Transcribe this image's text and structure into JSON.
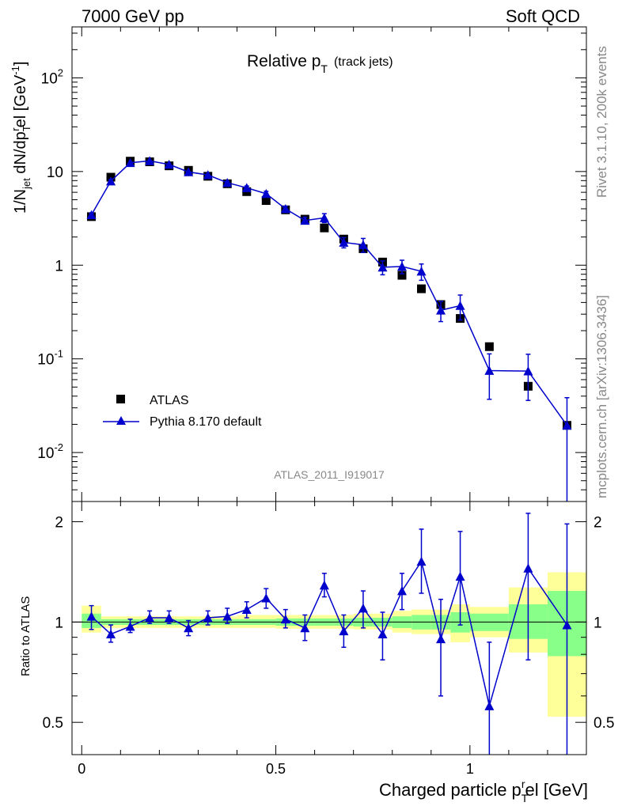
{
  "header": {
    "left": "7000 GeV pp",
    "right": "Soft QCD"
  },
  "side_labels": {
    "rivet": "Rivet 3.1.10,  200k events",
    "mcplots": "mcplots.cern.ch [arXiv:1306.3436]"
  },
  "chart_data": {
    "type": "scatter",
    "title_main": "Relative p",
    "title_sub": "T",
    "title_suffix": "(track jets)",
    "analysis_id": "ATLAS_2011_I919017",
    "ylabel": "1/N_jet dN/dp_T^rel [GeV^-1]",
    "ylabel_parts": {
      "a": "1/N",
      "a_sub": "jet",
      "b": " dN/dp",
      "b_sub": "T",
      "b_sup": "r",
      "c": "el [GeV",
      "c_sup": "-1",
      "d": "]"
    },
    "ratio_ylabel": "Ratio to ATLAS",
    "xlabel": "Charged particle p_T^rel [GeV]",
    "xlabel_parts": {
      "a": "Charged particle p",
      "sub": "T",
      "sup": "r",
      "b": "el [GeV]"
    },
    "xlim": [
      -0.025,
      1.3
    ],
    "ylim": [
      0.003,
      350
    ],
    "yscale": "log",
    "ratio_ylim": [
      0.4,
      2.3
    ],
    "x_ticks": [
      0,
      0.5,
      1
    ],
    "x_tick_labels": [
      "0",
      "0.5",
      "1"
    ],
    "y_tick_labels": [
      {
        "value": 0.01,
        "base": "10",
        "exp": "-2"
      },
      {
        "value": 0.1,
        "base": "10",
        "exp": "-1"
      },
      {
        "value": 1,
        "base": "1",
        "exp": ""
      },
      {
        "value": 10,
        "base": "10",
        "exp": ""
      },
      {
        "value": 100,
        "base": "10",
        "exp": "2"
      }
    ],
    "ratio_ticks": [
      0.5,
      1,
      2
    ],
    "ratio_tick_labels": [
      "0.5",
      "1",
      "2"
    ],
    "legend": [
      {
        "name": "ATLAS",
        "marker": "square",
        "color": "#000000"
      },
      {
        "name": "Pythia 8.170 default",
        "marker": "triangle",
        "color": "#0000cc"
      }
    ],
    "series": [
      {
        "name": "ATLAS",
        "x": [
          0.025,
          0.075,
          0.125,
          0.175,
          0.225,
          0.275,
          0.325,
          0.375,
          0.425,
          0.475,
          0.525,
          0.575,
          0.625,
          0.675,
          0.725,
          0.775,
          0.825,
          0.875,
          0.925,
          0.975,
          1.05,
          1.15,
          1.25
        ],
        "y": [
          3.3,
          8.7,
          12.9,
          12.7,
          11.5,
          10.3,
          8.9,
          7.4,
          6.1,
          4.9,
          3.9,
          3.1,
          2.5,
          1.9,
          1.5,
          1.08,
          0.78,
          0.56,
          0.38,
          0.27,
          0.135,
          0.051,
          0.0195
        ]
      },
      {
        "name": "Pythia 8.170 default",
        "x": [
          0.025,
          0.075,
          0.125,
          0.175,
          0.225,
          0.275,
          0.325,
          0.375,
          0.425,
          0.475,
          0.525,
          0.575,
          0.625,
          0.675,
          0.725,
          0.775,
          0.825,
          0.875,
          0.925,
          0.975,
          1.05,
          1.15,
          1.25
        ],
        "y": [
          3.45,
          7.9,
          12.4,
          13.0,
          11.9,
          9.9,
          9.2,
          7.6,
          6.7,
          5.8,
          4.0,
          3.0,
          3.2,
          1.75,
          1.65,
          0.95,
          0.97,
          0.86,
          0.33,
          0.37,
          0.075,
          0.074,
          0.0195
        ],
        "y_err": [
          0.15,
          0.35,
          0.4,
          0.4,
          0.35,
          0.3,
          0.3,
          0.3,
          0.3,
          0.35,
          0.25,
          0.25,
          0.35,
          0.22,
          0.28,
          0.16,
          0.16,
          0.17,
          0.08,
          0.11,
          0.038,
          0.038,
          0.019
        ]
      }
    ],
    "ratio": {
      "x": [
        0.025,
        0.075,
        0.125,
        0.175,
        0.225,
        0.275,
        0.325,
        0.375,
        0.425,
        0.475,
        0.525,
        0.575,
        0.625,
        0.675,
        0.725,
        0.775,
        0.825,
        0.875,
        0.925,
        0.975,
        1.05,
        1.15,
        1.25
      ],
      "y": [
        1.04,
        0.92,
        0.97,
        1.03,
        1.03,
        0.96,
        1.03,
        1.04,
        1.09,
        1.18,
        1.02,
        0.96,
        1.29,
        0.94,
        1.1,
        0.92,
        1.24,
        1.52,
        0.89,
        1.37,
        0.56,
        1.45,
        0.98
      ],
      "y_lo": [
        0.95,
        0.87,
        0.93,
        0.99,
        0.99,
        0.91,
        0.98,
        0.99,
        1.03,
        1.1,
        0.96,
        0.88,
        1.19,
        0.84,
        0.96,
        0.77,
        1.09,
        1.22,
        0.6,
        0.98,
        0.3,
        0.77,
        0.3
      ],
      "y_hi": [
        1.12,
        0.98,
        1.02,
        1.08,
        1.08,
        1.01,
        1.08,
        1.1,
        1.15,
        1.26,
        1.09,
        1.05,
        1.4,
        1.05,
        1.24,
        1.07,
        1.4,
        1.9,
        1.17,
        1.87,
        0.87,
        2.12,
        1.97
      ],
      "bands": [
        {
          "xlo": 0.0,
          "xhi": 0.05,
          "g_lo": 0.96,
          "g_hi": 1.06,
          "y_lo": 0.93,
          "y_hi": 1.12
        },
        {
          "xlo": 0.05,
          "xhi": 0.1,
          "g_lo": 0.98,
          "g_hi": 1.02,
          "y_lo": 0.96,
          "y_hi": 1.04
        },
        {
          "xlo": 0.1,
          "xhi": 0.15,
          "g_lo": 0.98,
          "g_hi": 1.02,
          "y_lo": 0.96,
          "y_hi": 1.04
        },
        {
          "xlo": 0.15,
          "xhi": 0.2,
          "g_lo": 0.98,
          "g_hi": 1.02,
          "y_lo": 0.96,
          "y_hi": 1.04
        },
        {
          "xlo": 0.2,
          "xhi": 0.25,
          "g_lo": 0.98,
          "g_hi": 1.02,
          "y_lo": 0.96,
          "y_hi": 1.04
        },
        {
          "xlo": 0.25,
          "xhi": 0.3,
          "g_lo": 0.98,
          "g_hi": 1.02,
          "y_lo": 0.96,
          "y_hi": 1.04
        },
        {
          "xlo": 0.3,
          "xhi": 0.35,
          "g_lo": 0.98,
          "g_hi": 1.02,
          "y_lo": 0.96,
          "y_hi": 1.04
        },
        {
          "xlo": 0.35,
          "xhi": 0.4,
          "g_lo": 0.98,
          "g_hi": 1.02,
          "y_lo": 0.96,
          "y_hi": 1.04
        },
        {
          "xlo": 0.4,
          "xhi": 0.45,
          "g_lo": 0.98,
          "g_hi": 1.02,
          "y_lo": 0.96,
          "y_hi": 1.05
        },
        {
          "xlo": 0.45,
          "xhi": 0.5,
          "g_lo": 0.98,
          "g_hi": 1.02,
          "y_lo": 0.96,
          "y_hi": 1.05
        },
        {
          "xlo": 0.5,
          "xhi": 0.55,
          "g_lo": 0.975,
          "g_hi": 1.025,
          "y_lo": 0.955,
          "y_hi": 1.05
        },
        {
          "xlo": 0.55,
          "xhi": 0.6,
          "g_lo": 0.975,
          "g_hi": 1.025,
          "y_lo": 0.955,
          "y_hi": 1.05
        },
        {
          "xlo": 0.6,
          "xhi": 0.65,
          "g_lo": 0.975,
          "g_hi": 1.025,
          "y_lo": 0.955,
          "y_hi": 1.05
        },
        {
          "xlo": 0.65,
          "xhi": 0.7,
          "g_lo": 0.975,
          "g_hi": 1.025,
          "y_lo": 0.955,
          "y_hi": 1.05
        },
        {
          "xlo": 0.7,
          "xhi": 0.75,
          "g_lo": 0.97,
          "g_hi": 1.03,
          "y_lo": 0.95,
          "y_hi": 1.06
        },
        {
          "xlo": 0.75,
          "xhi": 0.8,
          "g_lo": 0.97,
          "g_hi": 1.03,
          "y_lo": 0.95,
          "y_hi": 1.06
        },
        {
          "xlo": 0.8,
          "xhi": 0.85,
          "g_lo": 0.96,
          "g_hi": 1.04,
          "y_lo": 0.93,
          "y_hi": 1.08
        },
        {
          "xlo": 0.85,
          "xhi": 0.9,
          "g_lo": 0.95,
          "g_hi": 1.05,
          "y_lo": 0.92,
          "y_hi": 1.09
        },
        {
          "xlo": 0.9,
          "xhi": 0.95,
          "g_lo": 0.95,
          "g_hi": 1.05,
          "y_lo": 0.92,
          "y_hi": 1.09
        },
        {
          "xlo": 0.95,
          "xhi": 1.0,
          "g_lo": 0.93,
          "g_hi": 1.07,
          "y_lo": 0.87,
          "y_hi": 1.13
        },
        {
          "xlo": 1.0,
          "xhi": 1.1,
          "g_lo": 0.94,
          "g_hi": 1.06,
          "y_lo": 0.9,
          "y_hi": 1.11
        },
        {
          "xlo": 1.1,
          "xhi": 1.2,
          "g_lo": 0.89,
          "g_hi": 1.13,
          "y_lo": 0.81,
          "y_hi": 1.27
        },
        {
          "xlo": 1.2,
          "xhi": 1.3,
          "g_lo": 0.79,
          "g_hi": 1.24,
          "y_lo": 0.52,
          "y_hi": 1.41
        }
      ]
    }
  }
}
